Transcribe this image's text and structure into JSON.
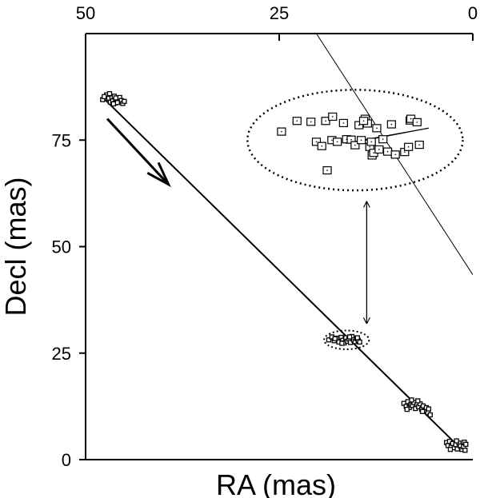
{
  "chart_data": {
    "type": "scatter",
    "title": "",
    "xlabel": "RA (mas)",
    "ylabel": "Decl (mas)",
    "xlim": [
      50,
      0
    ],
    "ylim": [
      0,
      100
    ],
    "x_ticks": [
      50,
      25,
      0
    ],
    "x_tick_labels": [
      "50",
      "25",
      "0"
    ],
    "y_ticks": [
      0,
      25,
      50,
      75
    ],
    "y_tick_labels": [
      "0",
      "25",
      "50",
      "75"
    ],
    "x_axis_position": "top",
    "y_axis_position": "left",
    "grid": false,
    "legend": "none",
    "trajectory_line": [
      [
        47.5,
        84.5
      ],
      [
        1.5,
        2.5
      ]
    ],
    "motion_arrow": {
      "from": [
        47.2,
        80.0
      ],
      "to": [
        39.3,
        64.6
      ],
      "direction": "along trajectory"
    },
    "diagonal_line": {
      "from": [
        20.2,
        100.0
      ],
      "to": [
        -0.5,
        42.0
      ]
    },
    "clusters": [
      {
        "points": [
          [
            47.8,
            84.5
          ],
          [
            47.3,
            85.6
          ],
          [
            47.0,
            84.8
          ],
          [
            46.8,
            83.9
          ],
          [
            46.6,
            84.9
          ],
          [
            46.5,
            84.2
          ],
          [
            46.3,
            85.3
          ],
          [
            46.2,
            83.7
          ],
          [
            46.0,
            84.6
          ],
          [
            45.8,
            84.0
          ],
          [
            45.6,
            85.0
          ],
          [
            45.4,
            84.3
          ],
          [
            45.2,
            83.6
          ],
          [
            47.6,
            85.2
          ],
          [
            46.9,
            85.9
          ],
          [
            46.1,
            84.9
          ],
          [
            45.9,
            83.8
          ],
          [
            45.0,
            84.1
          ],
          [
            46.4,
            83.5
          ]
        ]
      },
      {
        "points": [
          [
            18.6,
            28.1
          ],
          [
            18.2,
            28.8
          ],
          [
            17.9,
            27.9
          ],
          [
            17.6,
            28.5
          ],
          [
            17.3,
            27.6
          ],
          [
            17.0,
            28.7
          ],
          [
            16.8,
            28.0
          ],
          [
            16.6,
            27.4
          ],
          [
            16.4,
            28.6
          ],
          [
            16.2,
            27.8
          ],
          [
            16.0,
            28.3
          ],
          [
            15.8,
            27.5
          ],
          [
            15.6,
            28.9
          ],
          [
            15.4,
            28.1
          ],
          [
            15.2,
            27.7
          ],
          [
            15.0,
            28.4
          ],
          [
            14.8,
            28.0
          ],
          [
            14.6,
            27.6
          ],
          [
            17.8,
            28.4
          ],
          [
            16.9,
            27.3
          ],
          [
            15.9,
            28.8
          ],
          [
            14.9,
            28.6
          ]
        ],
        "outline_ellipse": {
          "center": [
            16.3,
            28.1
          ],
          "radii": [
            2.9,
            2.2
          ],
          "style": "dotted"
        },
        "enlarged_view": {
          "ellipse": {
            "center": [
              15.2,
              75.0
            ],
            "radii": [
              13.9,
              11.8
            ],
            "style": "dotted"
          },
          "points": [
            [
              24.7,
              77.0
            ],
            [
              22.7,
              79.5
            ],
            [
              20.9,
              79.3
            ],
            [
              20.2,
              74.6
            ],
            [
              19.5,
              73.6
            ],
            [
              19.0,
              79.5
            ],
            [
              18.1,
              80.5
            ],
            [
              18.2,
              75.0
            ],
            [
              17.5,
              74.6
            ],
            [
              16.7,
              79.0
            ],
            [
              16.3,
              75.2
            ],
            [
              15.7,
              75.1
            ],
            [
              15.2,
              73.8
            ],
            [
              14.7,
              78.5
            ],
            [
              14.4,
              75.0
            ],
            [
              13.9,
              80.0
            ],
            [
              13.6,
              78.9
            ],
            [
              13.3,
              73.4
            ],
            [
              13.0,
              71.4
            ],
            [
              12.8,
              72.0
            ],
            [
              12.4,
              77.8
            ],
            [
              12.1,
              72.8
            ],
            [
              11.6,
              75.2
            ],
            [
              11.0,
              72.3
            ],
            [
              10.5,
              78.7
            ],
            [
              10.0,
              71.6
            ],
            [
              8.8,
              72.2
            ],
            [
              8.3,
              73.4
            ],
            [
              8.1,
              79.6
            ],
            [
              8.0,
              80.0
            ],
            [
              7.2,
              79.2
            ],
            [
              6.9,
              73.9
            ],
            [
              18.8,
              67.9
            ],
            [
              13.1,
              74.6
            ],
            [
              14.1,
              79.5
            ]
          ]
        },
        "connector_arrow": {
          "from": [
            13.7,
            60.5
          ],
          "to": [
            13.7,
            32.0
          ],
          "style": "double-headed"
        }
      },
      {
        "points": [
          [
            8.9,
            13.2
          ],
          [
            8.6,
            12.5
          ],
          [
            8.4,
            13.6
          ],
          [
            8.2,
            12.2
          ],
          [
            8.0,
            13.0
          ],
          [
            7.8,
            12.7
          ],
          [
            7.6,
            13.4
          ],
          [
            7.4,
            12.0
          ],
          [
            7.2,
            12.9
          ],
          [
            7.0,
            12.4
          ],
          [
            6.8,
            13.1
          ],
          [
            6.6,
            11.8
          ],
          [
            6.4,
            12.6
          ],
          [
            6.2,
            11.5
          ],
          [
            6.0,
            12.2
          ],
          [
            5.8,
            11.0
          ],
          [
            7.9,
            14.0
          ],
          [
            7.1,
            13.8
          ],
          [
            6.5,
            11.3
          ],
          [
            5.7,
            11.9
          ],
          [
            8.5,
            11.8
          ],
          [
            5.5,
            10.5
          ]
        ]
      },
      {
        "points": [
          [
            3.4,
            4.0
          ],
          [
            3.2,
            3.3
          ],
          [
            3.0,
            4.3
          ],
          [
            2.8,
            3.0
          ],
          [
            2.6,
            3.8
          ],
          [
            2.4,
            2.8
          ],
          [
            2.2,
            3.5
          ],
          [
            2.0,
            2.5
          ],
          [
            1.8,
            3.9
          ],
          [
            1.6,
            3.2
          ],
          [
            1.4,
            2.4
          ],
          [
            1.2,
            3.0
          ],
          [
            1.0,
            2.2
          ],
          [
            1.1,
            4.1
          ],
          [
            2.9,
            2.4
          ],
          [
            2.1,
            4.4
          ],
          [
            0.9,
            3.6
          ]
        ]
      }
    ]
  }
}
